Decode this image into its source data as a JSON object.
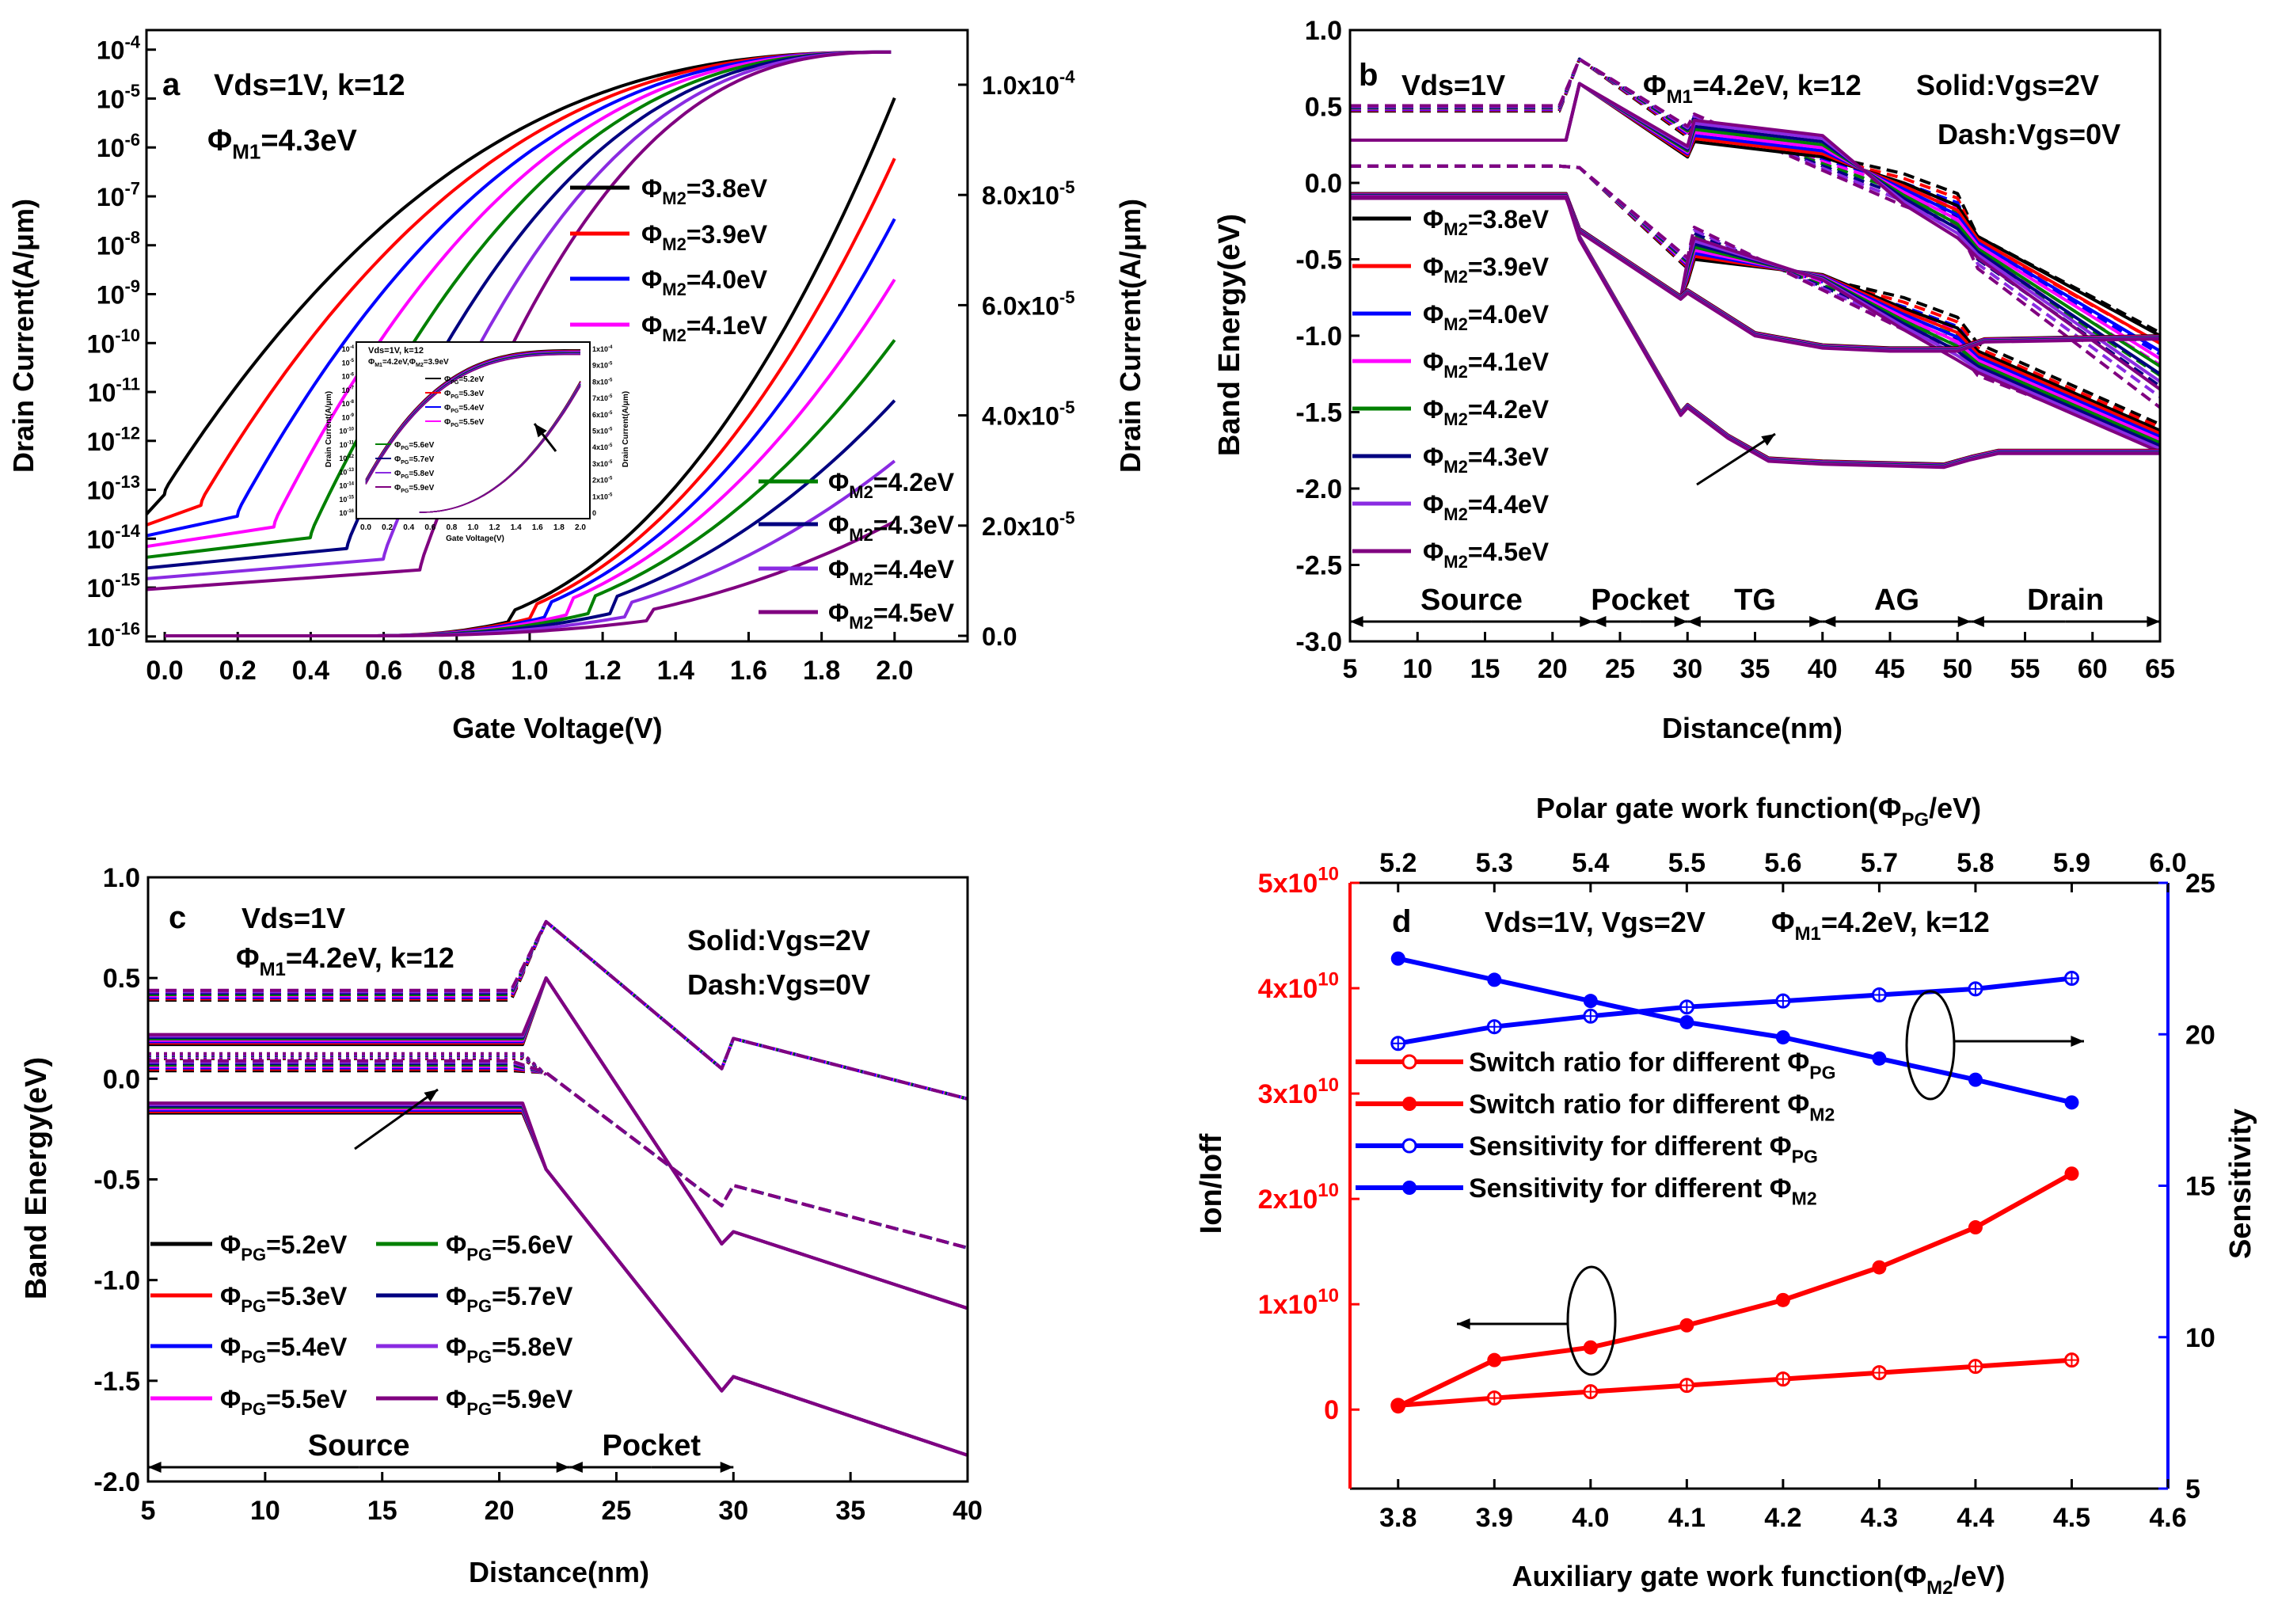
{
  "chart_data": [
    {
      "panel": "a",
      "type": "line",
      "panel_label": "a",
      "annotations": [
        "Vds=1V, k=12",
        "ΦM1=4.3eV"
      ],
      "xlabel": "Gate Voltage(V)",
      "ylabel": "Drain Current(A/μm)",
      "ylabel_right": "Drain Current(A/μm)",
      "xlim": [
        -0.05,
        2.2
      ],
      "x_ticks": [
        "0.0",
        "0.2",
        "0.4",
        "0.6",
        "0.8",
        "1.0",
        "1.2",
        "1.4",
        "1.6",
        "1.8",
        "2.0"
      ],
      "ylim_log_exp": [
        -16.1,
        -3.6
      ],
      "y_ticks_left_exp": [
        "-16",
        "-15",
        "-14",
        "-13",
        "-12",
        "-11",
        "-10",
        "-9",
        "-8",
        "-7",
        "-6",
        "-5",
        "-4"
      ],
      "ylim_right": [
        0,
        0.0001
      ],
      "y_ticks_right": [
        "0.0",
        "2.0x10-5",
        "4.0x10-5",
        "6.0x10-5",
        "8.0x10-5",
        "1.0x10-4"
      ],
      "series": [
        {
          "name": "ΦM2=3.8eV",
          "color": "#000000",
          "vth": 0.0
        },
        {
          "name": "ΦM2=3.9eV",
          "color": "#ff0000",
          "vth": 0.1
        },
        {
          "name": "ΦM2=4.0eV",
          "color": "#0000ff",
          "vth": 0.2
        },
        {
          "name": "ΦM2=4.1eV",
          "color": "#ff00ff",
          "vth": 0.3
        },
        {
          "name": "ΦM2=4.2eV",
          "color": "#008000",
          "vth": 0.4
        },
        {
          "name": "ΦM2=4.3eV",
          "color": "#000080",
          "vth": 0.5
        },
        {
          "name": "ΦM2=4.4eV",
          "color": "#8a2be2",
          "vth": 0.6
        },
        {
          "name": "ΦM2=4.5eV",
          "color": "#800080",
          "vth": 0.7
        }
      ],
      "inset": {
        "annotations": [
          "Vds=1V, k=12",
          "ΦM1=4.2eV,ΦM2=3.9eV"
        ],
        "xlabel": "Gate Voltage(V)",
        "ylabel": "Drain Current(A/μm)",
        "ylabel_right": "Drain Current(A/μm)",
        "x_ticks": [
          "0.0",
          "0.2",
          "0.4",
          "0.6",
          "0.8",
          "1.0",
          "1.2",
          "1.4",
          "1.6",
          "1.8",
          "2.0"
        ],
        "y_ticks_left_exp": [
          "-16",
          "-15",
          "-14",
          "-13",
          "-12",
          "-11",
          "-10",
          "-9",
          "-8",
          "-7",
          "-6",
          "-5",
          "-4"
        ],
        "y_ticks_right": [
          "0",
          "1x10-5",
          "2x10-5",
          "3x10-5",
          "4x10-5",
          "5x10-5",
          "6x10-5",
          "7x10-5",
          "8x10-5",
          "9x10-5",
          "1x10-4"
        ],
        "series": [
          {
            "name": "ΦPG=5.2eV",
            "color": "#000000"
          },
          {
            "name": "ΦPG=5.3eV",
            "color": "#ff0000"
          },
          {
            "name": "ΦPG=5.4eV",
            "color": "#0000ff"
          },
          {
            "name": "ΦPG=5.5eV",
            "color": "#ff00ff"
          },
          {
            "name": "ΦPG=5.6eV",
            "color": "#008000"
          },
          {
            "name": "ΦPG=5.7eV",
            "color": "#000080"
          },
          {
            "name": "ΦPG=5.8eV",
            "color": "#8a2be2"
          },
          {
            "name": "ΦPG=5.9eV",
            "color": "#800080"
          }
        ]
      }
    },
    {
      "panel": "b",
      "type": "line",
      "panel_label": "b",
      "annotations": [
        "Vds=1V",
        "ΦM1=4.2eV, k=12",
        "Solid:Vgs=2V",
        "Dash:Vgs=0V"
      ],
      "xlabel": "Distance(nm)",
      "ylabel": "Band Energy(eV)",
      "xlim": [
        5,
        65
      ],
      "ylim": [
        -3.0,
        1.0
      ],
      "x_ticks": [
        "5",
        "10",
        "15",
        "20",
        "25",
        "30",
        "35",
        "40",
        "45",
        "50",
        "55",
        "60",
        "65"
      ],
      "y_ticks": [
        "-3.0",
        "-2.5",
        "-2.0",
        "-1.5",
        "-1.0",
        "-0.5",
        "0.0",
        "0.5",
        "1.0"
      ],
      "regions": [
        {
          "label": "Source",
          "from": 5,
          "to": 23
        },
        {
          "label": "Pocket",
          "from": 23,
          "to": 30
        },
        {
          "label": "TG",
          "from": 30,
          "to": 40
        },
        {
          "label": "AG",
          "from": 40,
          "to": 51
        },
        {
          "label": "Drain",
          "from": 51,
          "to": 65
        }
      ],
      "series": [
        {
          "name": "ΦM2=3.8eV",
          "color": "#000000"
        },
        {
          "name": "ΦM2=3.9eV",
          "color": "#ff0000"
        },
        {
          "name": "ΦM2=4.0eV",
          "color": "#0000ff"
        },
        {
          "name": "ΦM2=4.1eV",
          "color": "#ff00ff"
        },
        {
          "name": "ΦM2=4.2eV",
          "color": "#008000"
        },
        {
          "name": "ΦM2=4.3eV",
          "color": "#000080"
        },
        {
          "name": "ΦM2=4.4eV",
          "color": "#8a2be2"
        },
        {
          "name": "ΦM2=4.5eV",
          "color": "#800080"
        }
      ]
    },
    {
      "panel": "c",
      "type": "line",
      "panel_label": "c",
      "annotations": [
        "Vds=1V",
        "ΦM1=4.2eV, k=12",
        "Solid:Vgs=2V",
        "Dash:Vgs=0V"
      ],
      "xlabel": "Distance(nm)",
      "ylabel": "Band Energy(eV)",
      "xlim": [
        5,
        40
      ],
      "ylim": [
        -2.0,
        1.0
      ],
      "x_ticks": [
        "5",
        "10",
        "15",
        "20",
        "25",
        "30",
        "35",
        "40"
      ],
      "y_ticks": [
        "-2.0",
        "-1.5",
        "-1.0",
        "-0.5",
        "0.0",
        "0.5",
        "1.0"
      ],
      "regions": [
        {
          "label": "Source",
          "from": 5,
          "to": 23
        },
        {
          "label": "Pocket",
          "from": 23,
          "to": 30
        }
      ],
      "series": [
        {
          "name": "ΦPG=5.2eV",
          "color": "#000000"
        },
        {
          "name": "ΦPG=5.3eV",
          "color": "#ff0000"
        },
        {
          "name": "ΦPG=5.4eV",
          "color": "#0000ff"
        },
        {
          "name": "ΦPG=5.5eV",
          "color": "#ff00ff"
        },
        {
          "name": "ΦPG=5.6eV",
          "color": "#008000"
        },
        {
          "name": "ΦPG=5.7eV",
          "color": "#000080"
        },
        {
          "name": "ΦPG=5.8eV",
          "color": "#8a2be2"
        },
        {
          "name": "ΦPG=5.9eV",
          "color": "#800080"
        }
      ]
    },
    {
      "panel": "d",
      "type": "line",
      "panel_label": "d",
      "annotations": [
        "Vds=1V, Vgs=2V",
        "ΦM1=4.2eV, k=12"
      ],
      "xlabel": "Auxiliary gate work function(ΦM2/eV)",
      "xlabel_top": "Polar gate work function(ΦPG/eV)",
      "ylabel": "Ion/Ioff",
      "ylabel_right": "Sensitivity",
      "xlim": [
        3.75,
        4.6
      ],
      "xlim_top": [
        5.15,
        6.0
      ],
      "x_ticks": [
        "3.8",
        "3.9",
        "4.0",
        "4.1",
        "4.2",
        "4.3",
        "4.4",
        "4.5",
        "4.6"
      ],
      "x_ticks_top": [
        "5.2",
        "5.3",
        "5.4",
        "5.5",
        "5.6",
        "5.7",
        "5.8",
        "5.9",
        "6.0"
      ],
      "ylim": [
        -7500000000.0,
        50000000000.0
      ],
      "y_ticks": [
        "0",
        "1x10^10",
        "2x10^10",
        "3x10^10",
        "4x10^10",
        "5x10^10"
      ],
      "ylim_right": [
        5,
        25
      ],
      "y_ticks_right": [
        "5",
        "10",
        "15",
        "20",
        "25"
      ],
      "x": [
        3.8,
        3.9,
        4.0,
        4.1,
        4.2,
        4.3,
        4.4,
        4.5
      ],
      "series": [
        {
          "name": "Switch ratio for different ΦPG",
          "color": "#ff0000",
          "marker": "open",
          "axis": "left",
          "values": [
            400000000.0,
            1100000000.0,
            1700000000.0,
            2300000000.0,
            2900000000.0,
            3500000000.0,
            4100000000.0,
            4700000000.0
          ]
        },
        {
          "name": "Switch ratio for different ΦM2",
          "color": "#ff0000",
          "marker": "filled",
          "axis": "left",
          "values": [
            300000000.0,
            4700000000.0,
            5900000000.0,
            8000000000.0,
            10400000000.0,
            13500000000.0,
            17300000000.0,
            22400000000.0
          ]
        },
        {
          "name": "Sensitivity for different ΦPG",
          "color": "#0000ff",
          "marker": "open",
          "axis": "right",
          "values": [
            19.7,
            20.25,
            20.6,
            20.9,
            21.1,
            21.3,
            21.5,
            21.85
          ]
        },
        {
          "name": "Sensitivity for different ΦM2",
          "color": "#0000ff",
          "marker": "filled",
          "axis": "right",
          "values": [
            22.5,
            21.8,
            21.1,
            20.4,
            19.9,
            19.2,
            18.5,
            17.75
          ]
        }
      ]
    }
  ]
}
